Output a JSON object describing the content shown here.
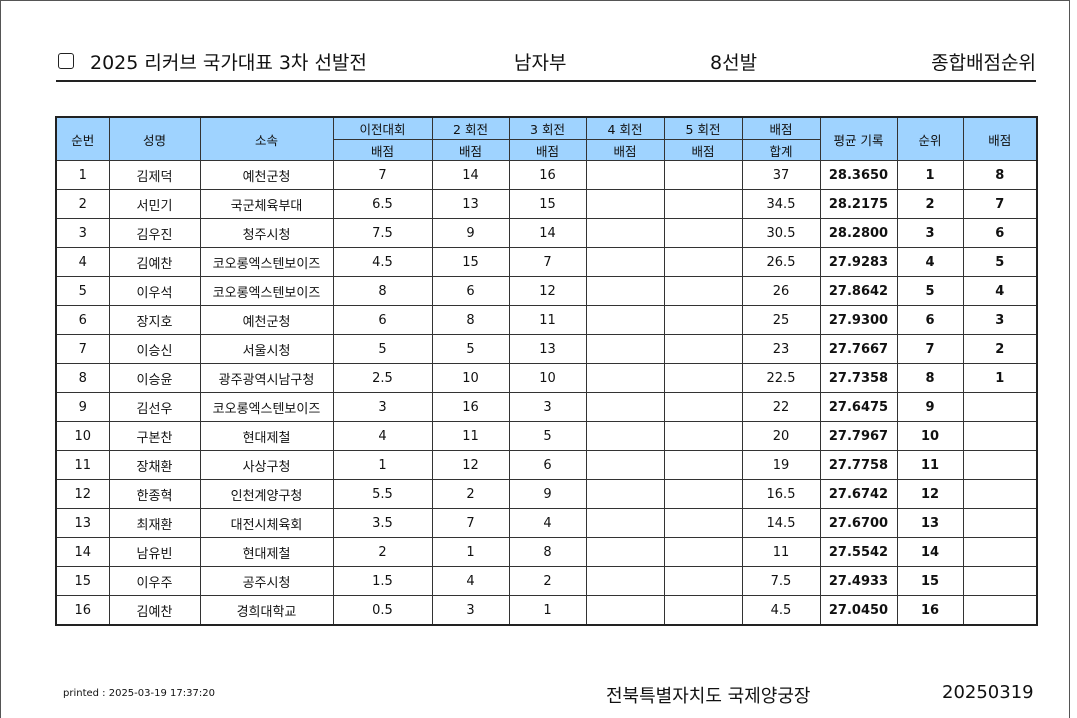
{
  "header": {
    "title": "2025 리커브 국가대표 3차 선발전",
    "division": "남자부",
    "selection": "8선발",
    "ranking_title": "종합배점순위"
  },
  "table": {
    "columns": {
      "no": "순번",
      "name": "성명",
      "team": "소속",
      "prev_top": "이전대회",
      "prev_bottom": "배점",
      "r2_top": "2 회전",
      "r2_bottom": "배점",
      "r3_top": "3 회전",
      "r3_bottom": "배점",
      "r4_top": "4 회전",
      "r4_bottom": "배점",
      "r5_top": "5 회전",
      "r5_bottom": "배점",
      "total_top": "배점",
      "total_bottom": "합계",
      "avg": "평균 기록",
      "rank": "순위",
      "points": "배점"
    },
    "rows": [
      {
        "no": "1",
        "name": "김제덕",
        "team": "예천군청",
        "prev": "7",
        "r2": "14",
        "r3": "16",
        "r4": "",
        "r5": "",
        "total": "37",
        "avg": "28.3650",
        "rank": "1",
        "points": "8"
      },
      {
        "no": "2",
        "name": "서민기",
        "team": "국군체육부대",
        "prev": "6.5",
        "r2": "13",
        "r3": "15",
        "r4": "",
        "r5": "",
        "total": "34.5",
        "avg": "28.2175",
        "rank": "2",
        "points": "7"
      },
      {
        "no": "3",
        "name": "김우진",
        "team": "청주시청",
        "prev": "7.5",
        "r2": "9",
        "r3": "14",
        "r4": "",
        "r5": "",
        "total": "30.5",
        "avg": "28.2800",
        "rank": "3",
        "points": "6"
      },
      {
        "no": "4",
        "name": "김예찬",
        "team": "코오롱엑스텐보이즈",
        "prev": "4.5",
        "r2": "15",
        "r3": "7",
        "r4": "",
        "r5": "",
        "total": "26.5",
        "avg": "27.9283",
        "rank": "4",
        "points": "5"
      },
      {
        "no": "5",
        "name": "이우석",
        "team": "코오롱엑스텐보이즈",
        "prev": "8",
        "r2": "6",
        "r3": "12",
        "r4": "",
        "r5": "",
        "total": "26",
        "avg": "27.8642",
        "rank": "5",
        "points": "4"
      },
      {
        "no": "6",
        "name": "장지호",
        "team": "예천군청",
        "prev": "6",
        "r2": "8",
        "r3": "11",
        "r4": "",
        "r5": "",
        "total": "25",
        "avg": "27.9300",
        "rank": "6",
        "points": "3"
      },
      {
        "no": "7",
        "name": "이승신",
        "team": "서울시청",
        "prev": "5",
        "r2": "5",
        "r3": "13",
        "r4": "",
        "r5": "",
        "total": "23",
        "avg": "27.7667",
        "rank": "7",
        "points": "2"
      },
      {
        "no": "8",
        "name": "이승윤",
        "team": "광주광역시남구청",
        "prev": "2.5",
        "r2": "10",
        "r3": "10",
        "r4": "",
        "r5": "",
        "total": "22.5",
        "avg": "27.7358",
        "rank": "8",
        "points": "1"
      },
      {
        "no": "9",
        "name": "김선우",
        "team": "코오롱엑스텐보이즈",
        "prev": "3",
        "r2": "16",
        "r3": "3",
        "r4": "",
        "r5": "",
        "total": "22",
        "avg": "27.6475",
        "rank": "9",
        "points": ""
      },
      {
        "no": "10",
        "name": "구본찬",
        "team": "현대제철",
        "prev": "4",
        "r2": "11",
        "r3": "5",
        "r4": "",
        "r5": "",
        "total": "20",
        "avg": "27.7967",
        "rank": "10",
        "points": ""
      },
      {
        "no": "11",
        "name": "장채환",
        "team": "사상구청",
        "prev": "1",
        "r2": "12",
        "r3": "6",
        "r4": "",
        "r5": "",
        "total": "19",
        "avg": "27.7758",
        "rank": "11",
        "points": ""
      },
      {
        "no": "12",
        "name": "한종혁",
        "team": "인천계양구청",
        "prev": "5.5",
        "r2": "2",
        "r3": "9",
        "r4": "",
        "r5": "",
        "total": "16.5",
        "avg": "27.6742",
        "rank": "12",
        "points": ""
      },
      {
        "no": "13",
        "name": "최재환",
        "team": "대전시체육회",
        "prev": "3.5",
        "r2": "7",
        "r3": "4",
        "r4": "",
        "r5": "",
        "total": "14.5",
        "avg": "27.6700",
        "rank": "13",
        "points": ""
      },
      {
        "no": "14",
        "name": "남유빈",
        "team": "현대제철",
        "prev": "2",
        "r2": "1",
        "r3": "8",
        "r4": "",
        "r5": "",
        "total": "11",
        "avg": "27.5542",
        "rank": "14",
        "points": ""
      },
      {
        "no": "15",
        "name": "이우주",
        "team": "공주시청",
        "prev": "1.5",
        "r2": "4",
        "r3": "2",
        "r4": "",
        "r5": "",
        "total": "7.5",
        "avg": "27.4933",
        "rank": "15",
        "points": ""
      },
      {
        "no": "16",
        "name": "김예찬",
        "team": "경희대학교",
        "prev": "0.5",
        "r2": "3",
        "r3": "1",
        "r4": "",
        "r5": "",
        "total": "4.5",
        "avg": "27.0450",
        "rank": "16",
        "points": ""
      }
    ]
  },
  "footer": {
    "printed": "printed : 2025-03-19 17:37:20",
    "venue": "전북특별자치도 국제양궁장",
    "date": "20250319"
  },
  "colors": {
    "header_bg": "#9fd3ff"
  }
}
